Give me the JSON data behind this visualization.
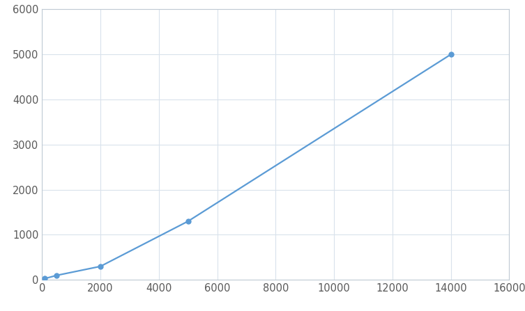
{
  "x": [
    100,
    500,
    2000,
    5000,
    14000
  ],
  "y": [
    30,
    100,
    300,
    1300,
    5000
  ],
  "line_color": "#5b9bd5",
  "marker_color": "#5b9bd5",
  "marker_size": 6,
  "line_width": 1.6,
  "xlim": [
    0,
    16000
  ],
  "ylim": [
    0,
    6000
  ],
  "xticks": [
    0,
    2000,
    4000,
    6000,
    8000,
    10000,
    12000,
    14000,
    16000
  ],
  "yticks": [
    0,
    1000,
    2000,
    3000,
    4000,
    5000,
    6000
  ],
  "grid_color": "#d9e2ec",
  "background_color": "#ffffff",
  "tick_label_fontsize": 10.5,
  "tick_label_color": "#595959"
}
